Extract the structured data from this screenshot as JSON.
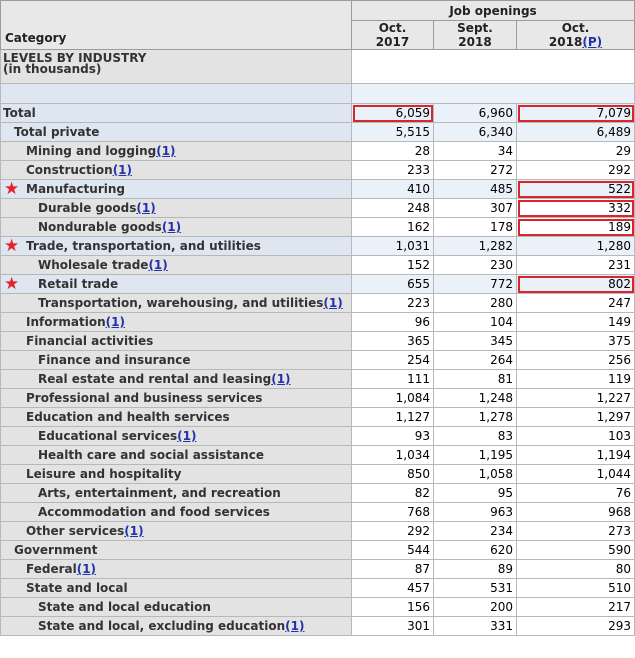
{
  "header": {
    "group_label": "Job openings",
    "category_label": "Category",
    "columns": [
      {
        "line1": "Oct.",
        "line2": "2017",
        "prelim": ""
      },
      {
        "line1": "Sept.",
        "line2": "2018",
        "prelim": ""
      },
      {
        "line1": "Oct.",
        "line2": "2018",
        "prelim": "(P)"
      }
    ]
  },
  "section": {
    "title": "LEVELS BY INDUSTRY",
    "subtitle": "(in thousands)"
  },
  "rows": [
    {
      "label": "Total",
      "fn": "",
      "level": 0,
      "shade": true,
      "star": false,
      "values": [
        "6,059",
        "6,960",
        "7,079"
      ],
      "box": [
        true,
        false,
        true
      ]
    },
    {
      "label": "Total private",
      "fn": "",
      "level": 1,
      "shade": true,
      "star": false,
      "values": [
        "5,515",
        "6,340",
        "6,489"
      ],
      "box": [
        false,
        false,
        false
      ]
    },
    {
      "label": "Mining and logging",
      "fn": "(1)",
      "level": 2,
      "shade": false,
      "star": false,
      "values": [
        "28",
        "34",
        "29"
      ],
      "box": [
        false,
        false,
        false
      ]
    },
    {
      "label": "Construction",
      "fn": "(1)",
      "level": 2,
      "shade": false,
      "star": false,
      "values": [
        "233",
        "272",
        "292"
      ],
      "box": [
        false,
        false,
        false
      ]
    },
    {
      "label": "Manufacturing",
      "fn": "",
      "level": 2,
      "shade": true,
      "star": true,
      "values": [
        "410",
        "485",
        "522"
      ],
      "box": [
        false,
        false,
        true
      ]
    },
    {
      "label": "Durable goods",
      "fn": "(1)",
      "level": 3,
      "shade": false,
      "star": false,
      "values": [
        "248",
        "307",
        "332"
      ],
      "box": [
        false,
        false,
        true
      ]
    },
    {
      "label": "Nondurable goods",
      "fn": "(1)",
      "level": 3,
      "shade": false,
      "star": false,
      "values": [
        "162",
        "178",
        "189"
      ],
      "box": [
        false,
        false,
        true
      ]
    },
    {
      "label": "Trade, transportation, and utilities",
      "fn": "",
      "level": 2,
      "shade": true,
      "star": true,
      "values": [
        "1,031",
        "1,282",
        "1,280"
      ],
      "box": [
        false,
        false,
        false
      ]
    },
    {
      "label": "Wholesale trade",
      "fn": "(1)",
      "level": 3,
      "shade": false,
      "star": false,
      "values": [
        "152",
        "230",
        "231"
      ],
      "box": [
        false,
        false,
        false
      ]
    },
    {
      "label": "Retail trade",
      "fn": "",
      "level": 3,
      "shade": true,
      "star": true,
      "values": [
        "655",
        "772",
        "802"
      ],
      "box": [
        false,
        false,
        true
      ]
    },
    {
      "label": "Transportation, warehousing, and utilities",
      "fn": "(1)",
      "level": 3,
      "shade": false,
      "star": false,
      "values": [
        "223",
        "280",
        "247"
      ],
      "box": [
        false,
        false,
        false
      ]
    },
    {
      "label": "Information",
      "fn": "(1)",
      "level": 2,
      "shade": false,
      "star": false,
      "values": [
        "96",
        "104",
        "149"
      ],
      "box": [
        false,
        false,
        false
      ]
    },
    {
      "label": "Financial activities",
      "fn": "",
      "level": 2,
      "shade": false,
      "star": false,
      "values": [
        "365",
        "345",
        "375"
      ],
      "box": [
        false,
        false,
        false
      ]
    },
    {
      "label": "Finance and insurance",
      "fn": "",
      "level": 3,
      "shade": false,
      "star": false,
      "values": [
        "254",
        "264",
        "256"
      ],
      "box": [
        false,
        false,
        false
      ]
    },
    {
      "label": "Real estate and rental and leasing",
      "fn": "(1)",
      "level": 3,
      "shade": false,
      "star": false,
      "values": [
        "111",
        "81",
        "119"
      ],
      "box": [
        false,
        false,
        false
      ]
    },
    {
      "label": "Professional and business services",
      "fn": "",
      "level": 2,
      "shade": false,
      "star": false,
      "values": [
        "1,084",
        "1,248",
        "1,227"
      ],
      "box": [
        false,
        false,
        false
      ]
    },
    {
      "label": "Education and health services",
      "fn": "",
      "level": 2,
      "shade": false,
      "star": false,
      "values": [
        "1,127",
        "1,278",
        "1,297"
      ],
      "box": [
        false,
        false,
        false
      ]
    },
    {
      "label": "Educational services",
      "fn": "(1)",
      "level": 3,
      "shade": false,
      "star": false,
      "values": [
        "93",
        "83",
        "103"
      ],
      "box": [
        false,
        false,
        false
      ]
    },
    {
      "label": "Health care and social assistance",
      "fn": "",
      "level": 3,
      "shade": false,
      "star": false,
      "values": [
        "1,034",
        "1,195",
        "1,194"
      ],
      "box": [
        false,
        false,
        false
      ]
    },
    {
      "label": "Leisure and hospitality",
      "fn": "",
      "level": 2,
      "shade": false,
      "star": false,
      "values": [
        "850",
        "1,058",
        "1,044"
      ],
      "box": [
        false,
        false,
        false
      ]
    },
    {
      "label": "Arts, entertainment, and recreation",
      "fn": "",
      "level": 3,
      "shade": false,
      "star": false,
      "values": [
        "82",
        "95",
        "76"
      ],
      "box": [
        false,
        false,
        false
      ]
    },
    {
      "label": "Accommodation and food services",
      "fn": "",
      "level": 3,
      "shade": false,
      "star": false,
      "values": [
        "768",
        "963",
        "968"
      ],
      "box": [
        false,
        false,
        false
      ]
    },
    {
      "label": "Other services",
      "fn": "(1)",
      "level": 2,
      "shade": false,
      "star": false,
      "values": [
        "292",
        "234",
        "273"
      ],
      "box": [
        false,
        false,
        false
      ]
    },
    {
      "label": "Government",
      "fn": "",
      "level": 1,
      "shade": false,
      "star": false,
      "values": [
        "544",
        "620",
        "590"
      ],
      "box": [
        false,
        false,
        false
      ]
    },
    {
      "label": "Federal",
      "fn": "(1)",
      "level": 2,
      "shade": false,
      "star": false,
      "values": [
        "87",
        "89",
        "80"
      ],
      "box": [
        false,
        false,
        false
      ]
    },
    {
      "label": "State and local",
      "fn": "",
      "level": 2,
      "shade": false,
      "star": false,
      "values": [
        "457",
        "531",
        "510"
      ],
      "box": [
        false,
        false,
        false
      ]
    },
    {
      "label": "State and local education",
      "fn": "",
      "level": 3,
      "shade": false,
      "star": false,
      "values": [
        "156",
        "200",
        "217"
      ],
      "box": [
        false,
        false,
        false
      ]
    },
    {
      "label": "State and local, excluding education",
      "fn": "(1)",
      "level": 3,
      "shade": false,
      "star": false,
      "values": [
        "301",
        "331",
        "293"
      ],
      "box": [
        false,
        false,
        false
      ]
    }
  ],
  "colors": {
    "highlight_box": "#d8262e",
    "star": "#e52328",
    "link": "#2233aa",
    "shade": "#dde6f1"
  },
  "icons": {
    "marker": "star-icon"
  }
}
